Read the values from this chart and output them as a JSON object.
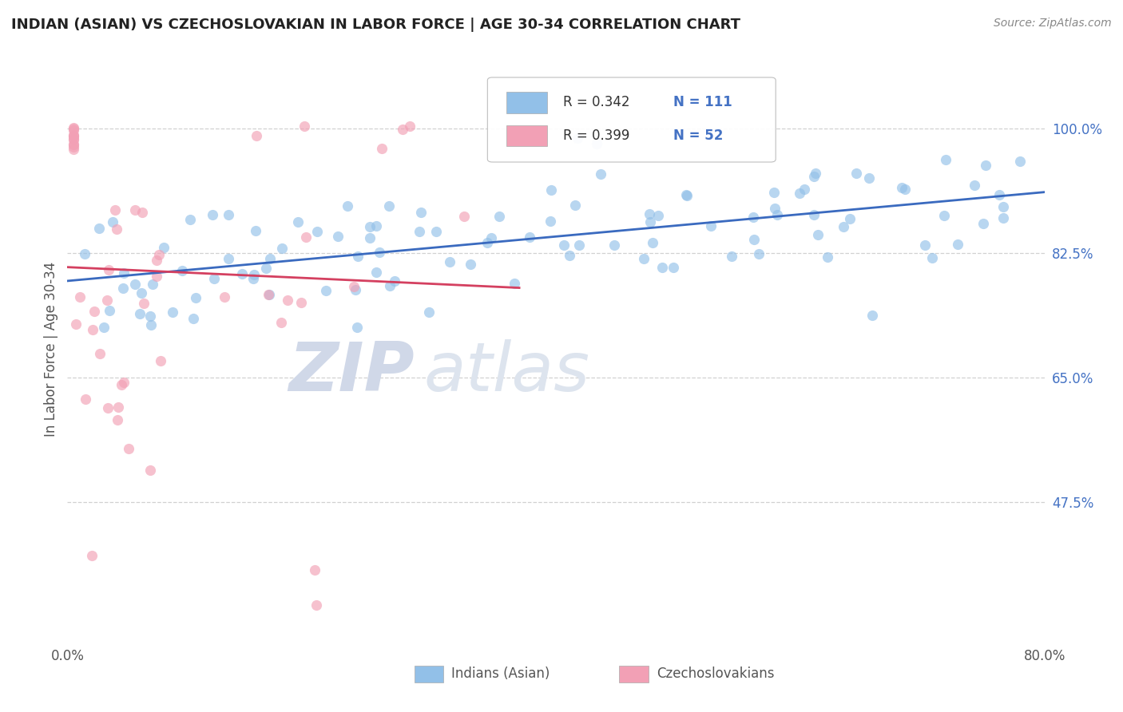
{
  "title": "INDIAN (ASIAN) VS CZECHOSLOVAKIAN IN LABOR FORCE | AGE 30-34 CORRELATION CHART",
  "source": "Source: ZipAtlas.com",
  "ylabel": "In Labor Force | Age 30-34",
  "xlim": [
    0.0,
    0.8
  ],
  "ylim": [
    0.28,
    1.1
  ],
  "yticks_right": [
    1.0,
    0.825,
    0.65,
    0.475
  ],
  "ytick_labels_right": [
    "100.0%",
    "82.5%",
    "65.0%",
    "47.5%"
  ],
  "R_blue": 0.342,
  "N_blue": 111,
  "R_pink": 0.399,
  "N_pink": 52,
  "legend_labels": [
    "Indians (Asian)",
    "Czechoslovakians"
  ],
  "blue_color": "#92c0e8",
  "pink_color": "#f2a0b5",
  "blue_line_color": "#3a6abf",
  "pink_line_color": "#d44060",
  "label_color": "#4472c4",
  "title_color": "#222222",
  "grid_color": "#cccccc"
}
